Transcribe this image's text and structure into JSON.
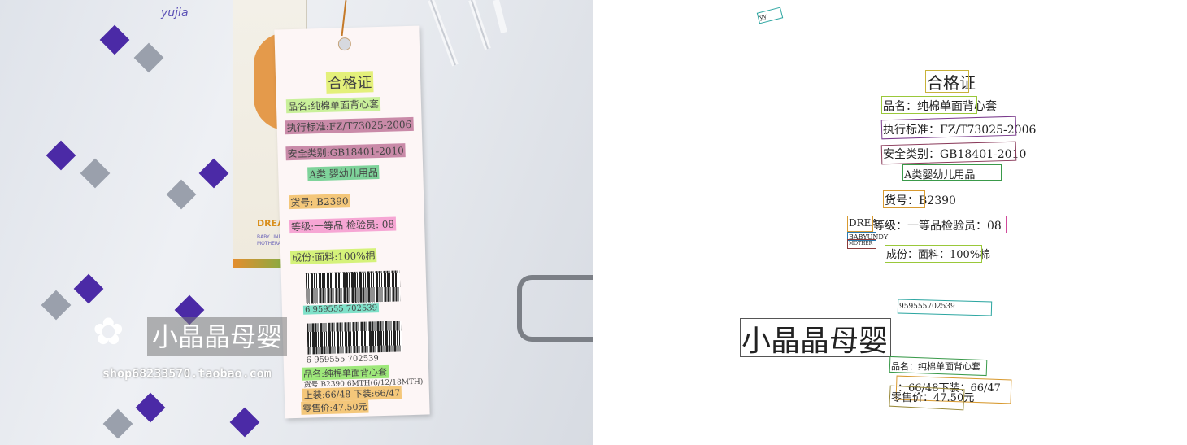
{
  "photo": {
    "fabric_logo": "yujia",
    "bg_card": {
      "brand": "DREA",
      "line1": "BABY UNDY",
      "line2": "MOTHERA"
    },
    "tag": {
      "title": "合格证",
      "product_name": "品名:纯棉单面背心套",
      "standard": "执行标准:FZ/T73025-2006",
      "safety": "安全类别:GB18401-2010",
      "category": "A类  婴幼儿用品",
      "item_no": "货号: B2390",
      "grade": "等级:一等品  检验员: 08",
      "composition": "成份:面料:100%棉",
      "barcode1_number": "6 959555 702539",
      "barcode2_number": "6 959555 702539",
      "product_name2": "品名:纯棉单面背心套",
      "size_line": "货号 B2390  6MTH(6/12/18MTH)",
      "size_top_bottom": "上装:66/48    下装:66/47",
      "price": "零售价:47.50元"
    },
    "watermark": {
      "flower": "✿",
      "text": "小晶晶母婴",
      "url": "shop68233570.taobao.com"
    }
  },
  "ocr": {
    "tiny_label": "yy",
    "title": "合格证",
    "product_name": "品名：纯棉单面背心套",
    "standard": "执行标准：FZ/T73025-2006",
    "safety": "安全类别：GB18401-2010",
    "category": "A类婴幼儿用品",
    "item_no": "货号：B2390",
    "dream": "DREA",
    "grade": "等级：一等品检验员：08",
    "babyundy": "BABYUNDY",
    "mother": "MOTHER",
    "composition": "成份：面料：100%棉",
    "barcode_number": "959555702539",
    "watermark": "小晶晶母婴",
    "product_name2": "品名：纯棉单面背心套",
    "size_line": "：66/48下装：66/47",
    "price": "零售价：47.50元",
    "colors": {
      "teal": "#2aa5a0",
      "khaki": "#c8b23a",
      "purple": "#7a3a8c",
      "maroon": "#8a3a5a",
      "green": "#3a9a4a",
      "orange": "#d89a30",
      "pink": "#d04a9a",
      "lime": "#9ac83a",
      "gray": "#555555"
    }
  }
}
